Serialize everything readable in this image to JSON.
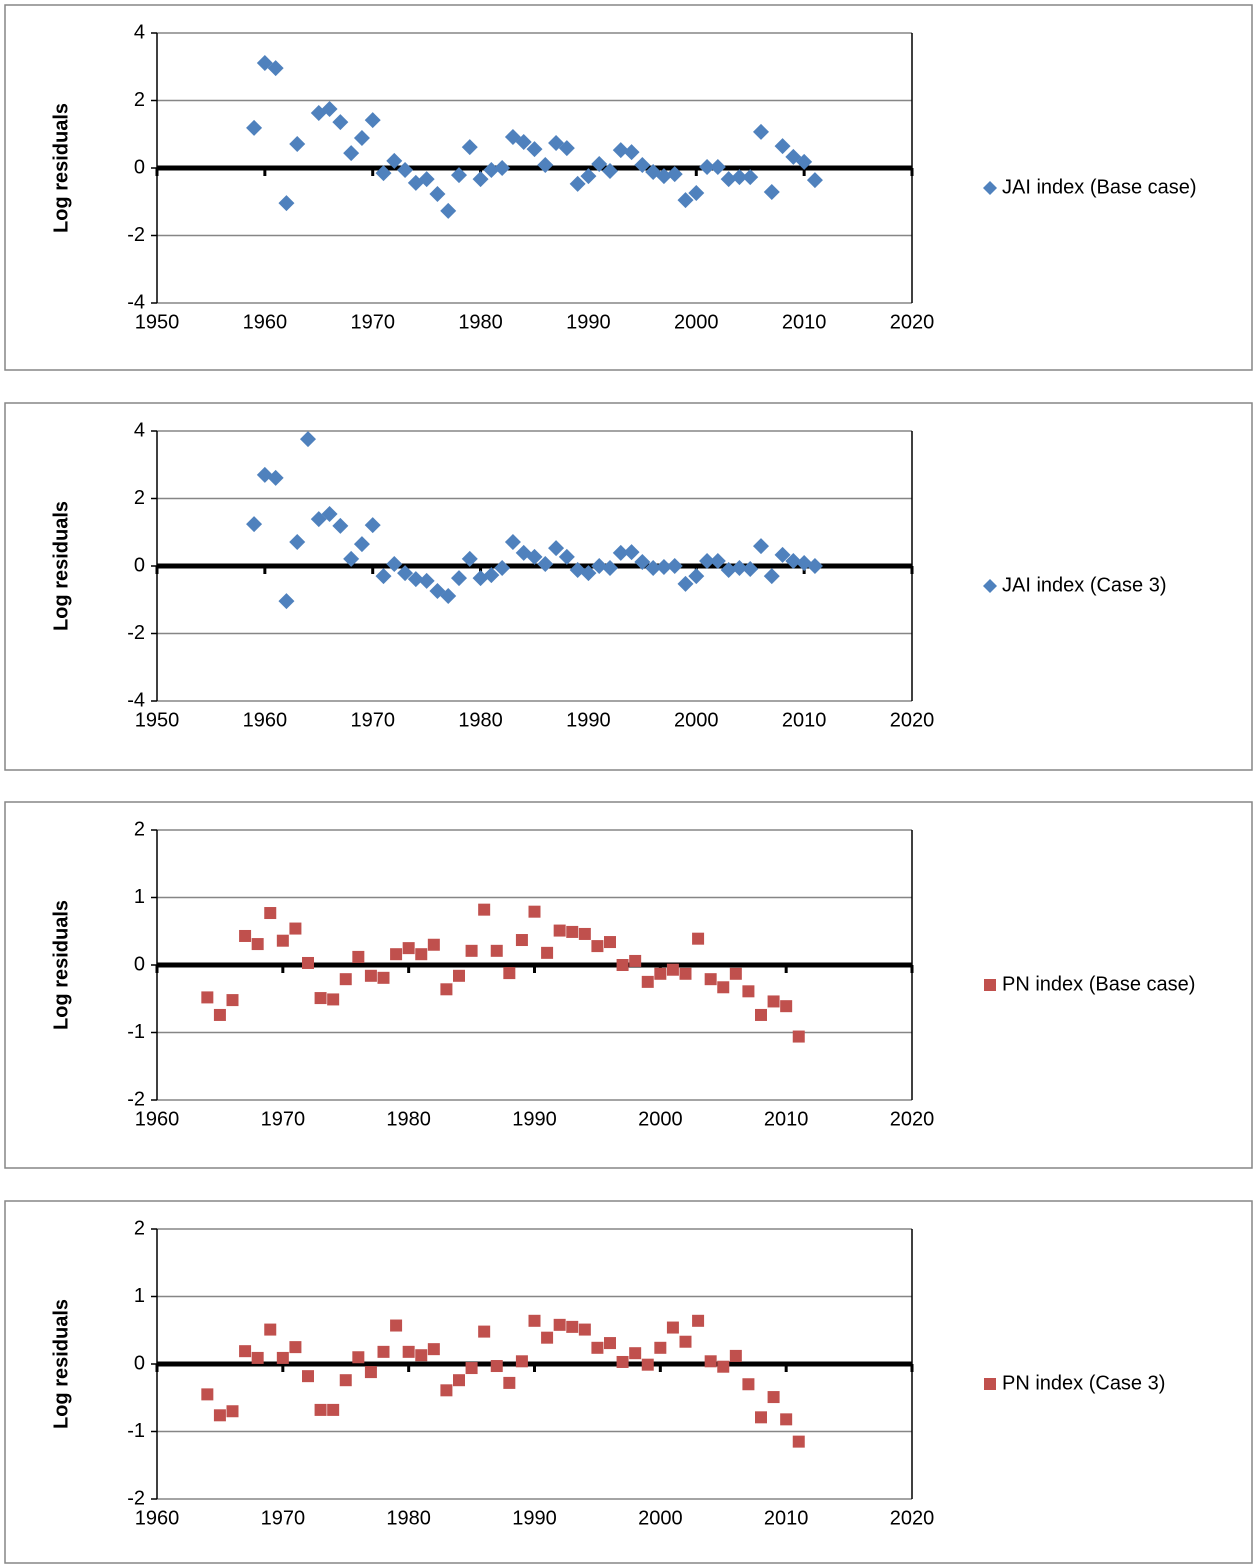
{
  "chart_data": [
    {
      "type": "scatter",
      "ylabel": "Log residuals",
      "x": [
        1959,
        1960,
        1961,
        1962,
        1963,
        1965,
        1966,
        1967,
        1968,
        1969,
        1970,
        1971,
        1972,
        1973,
        1974,
        1975,
        1976,
        1977,
        1978,
        1979,
        1980,
        1981,
        1982,
        1983,
        1984,
        1985,
        1986,
        1987,
        1988,
        1989,
        1990,
        1991,
        1992,
        1993,
        1994,
        1995,
        1996,
        1997,
        1998,
        1999,
        2000,
        2001,
        2002,
        2003,
        2004,
        2005,
        2006,
        2007,
        2008,
        2009,
        2010,
        2011
      ],
      "series": [
        {
          "name": "JAI index (Base case)",
          "color": "#4f81bd",
          "marker": "diamond",
          "values": [
            1.19,
            3.11,
            2.96,
            -1.04,
            0.71,
            1.63,
            1.75,
            1.36,
            0.44,
            0.89,
            1.42,
            -0.15,
            0.21,
            -0.06,
            -0.44,
            -0.33,
            -0.77,
            -1.27,
            -0.21,
            0.62,
            -0.33,
            -0.06,
            0,
            0.92,
            0.77,
            0.56,
            0.09,
            0.74,
            0.59,
            -0.47,
            -0.24,
            0.12,
            -0.09,
            0.53,
            0.47,
            0.09,
            -0.12,
            -0.24,
            -0.18,
            -0.95,
            -0.74,
            0.03,
            0.03,
            -0.33,
            -0.27,
            -0.27,
            1.07,
            -0.71,
            0.65,
            0.33,
            0.18,
            -0.36
          ]
        }
      ],
      "xlim": [
        1950,
        2020
      ],
      "xticks": [
        1950,
        1960,
        1970,
        1980,
        1990,
        2000,
        2010,
        2020
      ],
      "ylim": [
        -4,
        4
      ],
      "yticks": [
        -4,
        -2,
        0,
        2,
        4
      ],
      "grid": true,
      "legend": "right"
    },
    {
      "type": "scatter",
      "ylabel": "Log residuals",
      "x": [
        1959,
        1960,
        1961,
        1962,
        1963,
        1964,
        1965,
        1966,
        1967,
        1968,
        1969,
        1970,
        1971,
        1972,
        1973,
        1974,
        1975,
        1976,
        1977,
        1978,
        1979,
        1980,
        1981,
        1982,
        1983,
        1984,
        1985,
        1986,
        1987,
        1988,
        1989,
        1990,
        1991,
        1992,
        1993,
        1994,
        1995,
        1996,
        1997,
        1998,
        1999,
        2000,
        2001,
        2002,
        2003,
        2004,
        2005,
        2006,
        2007,
        2008,
        2009,
        2010,
        2011
      ],
      "series": [
        {
          "name": "JAI index (Case 3)",
          "color": "#4f81bd",
          "marker": "diamond",
          "values": [
            1.24,
            2.7,
            2.61,
            -1.04,
            0.71,
            3.76,
            1.39,
            1.54,
            1.19,
            0.21,
            0.65,
            1.21,
            -0.3,
            0.06,
            -0.21,
            -0.39,
            -0.44,
            -0.74,
            -0.89,
            -0.36,
            0.21,
            -0.36,
            -0.27,
            -0.06,
            0.71,
            0.39,
            0.27,
            0.06,
            0.53,
            0.27,
            -0.12,
            -0.21,
            0,
            -0.06,
            0.39,
            0.41,
            0.12,
            -0.06,
            -0.03,
            0,
            -0.53,
            -0.3,
            0.15,
            0.15,
            -0.12,
            -0.06,
            -0.09,
            0.59,
            -0.3,
            0.33,
            0.15,
            0.09,
            0
          ]
        }
      ],
      "xlim": [
        1950,
        2020
      ],
      "xticks": [
        1950,
        1960,
        1970,
        1980,
        1990,
        2000,
        2010,
        2020
      ],
      "ylim": [
        -4,
        4
      ],
      "yticks": [
        -4,
        -2,
        0,
        2,
        4
      ],
      "grid": true,
      "legend": "right"
    },
    {
      "type": "scatter",
      "ylabel": "Log residuals",
      "x": [
        1964,
        1965,
        1966,
        1967,
        1968,
        1969,
        1970,
        1971,
        1972,
        1973,
        1974,
        1975,
        1976,
        1977,
        1978,
        1979,
        1980,
        1981,
        1982,
        1983,
        1984,
        1985,
        1986,
        1987,
        1988,
        1989,
        1990,
        1991,
        1992,
        1993,
        1994,
        1995,
        1996,
        1997,
        1998,
        1999,
        2000,
        2001,
        2002,
        2003,
        2004,
        2005,
        2006,
        2007,
        2008,
        2009,
        2010,
        2011
      ],
      "series": [
        {
          "name": "PN index (Base case)",
          "color": "#c0504d",
          "marker": "square",
          "values": [
            -0.48,
            -0.74,
            -0.52,
            0.43,
            0.31,
            0.77,
            0.36,
            0.54,
            0.03,
            -0.49,
            -0.51,
            -0.21,
            0.12,
            -0.16,
            -0.19,
            0.16,
            0.25,
            0.16,
            0.3,
            -0.36,
            -0.16,
            0.21,
            0.82,
            0.21,
            -0.12,
            0.37,
            0.79,
            0.18,
            0.51,
            0.49,
            0.46,
            0.28,
            0.34,
            0,
            0.06,
            -0.25,
            -0.13,
            -0.07,
            -0.13,
            0.39,
            -0.21,
            -0.33,
            -0.13,
            -0.39,
            -0.74,
            -0.54,
            -0.61,
            -1.06
          ]
        }
      ],
      "xlim": [
        1960,
        2020
      ],
      "xticks": [
        1960,
        1970,
        1980,
        1990,
        2000,
        2010,
        2020
      ],
      "ylim": [
        -2,
        2
      ],
      "yticks": [
        -2,
        -1,
        0,
        1,
        2
      ],
      "grid": true,
      "legend": "right"
    },
    {
      "type": "scatter",
      "ylabel": "Log residuals",
      "x": [
        1964,
        1965,
        1966,
        1967,
        1968,
        1969,
        1970,
        1971,
        1972,
        1973,
        1974,
        1975,
        1976,
        1977,
        1978,
        1979,
        1980,
        1981,
        1982,
        1983,
        1984,
        1985,
        1986,
        1987,
        1988,
        1989,
        1990,
        1991,
        1992,
        1993,
        1994,
        1995,
        1996,
        1997,
        1998,
        1999,
        2000,
        2001,
        2002,
        2003,
        2004,
        2005,
        2006,
        2007,
        2008,
        2009,
        2010,
        2011
      ],
      "series": [
        {
          "name": "PN index (Case 3)",
          "color": "#c0504d",
          "marker": "square",
          "values": [
            -0.45,
            -0.76,
            -0.7,
            0.19,
            0.09,
            0.51,
            0.09,
            0.25,
            -0.18,
            -0.68,
            -0.68,
            -0.24,
            0.1,
            -0.12,
            0.18,
            0.57,
            0.18,
            0.13,
            0.22,
            -0.39,
            -0.24,
            -0.06,
            0.48,
            -0.03,
            -0.28,
            0.04,
            0.64,
            0.39,
            0.58,
            0.55,
            0.51,
            0.24,
            0.31,
            0.03,
            0.16,
            -0.01,
            0.24,
            0.54,
            0.33,
            0.64,
            0.04,
            -0.04,
            0.12,
            -0.3,
            -0.79,
            -0.49,
            -0.82,
            -1.15
          ]
        }
      ],
      "xlim": [
        1960,
        2020
      ],
      "xticks": [
        1960,
        1970,
        1980,
        1990,
        2000,
        2010,
        2020
      ],
      "ylim": [
        -2,
        2
      ],
      "yticks": [
        -2,
        -1,
        0,
        1,
        2
      ],
      "grid": true,
      "legend": "right"
    }
  ]
}
